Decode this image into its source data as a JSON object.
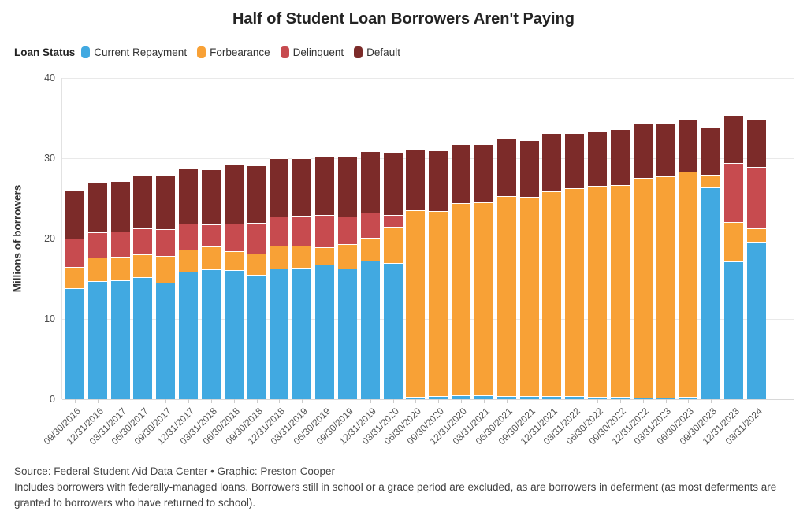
{
  "title": "Half of Student Loan Borrowers Aren't Paying",
  "legend": {
    "label": "Loan Status",
    "items": [
      {
        "label": "Current Repayment",
        "color": "#41a9e1"
      },
      {
        "label": "Forbearance",
        "color": "#f8a136"
      },
      {
        "label": "Delinquent",
        "color": "#c74b4f"
      },
      {
        "label": "Default",
        "color": "#7c2b29"
      }
    ]
  },
  "chart_data": {
    "type": "bar",
    "stacked": true,
    "title": "Half of Student Loan Borrowers Aren't Paying",
    "xlabel": "",
    "ylabel": "Millions of borrowers",
    "ylim": [
      0,
      40
    ],
    "yticks": [
      0,
      10,
      20,
      30,
      40
    ],
    "grid": true,
    "legend_position": "top-left",
    "categories": [
      "09/30/2016",
      "12/31/2016",
      "03/31/2017",
      "06/30/2017",
      "09/30/2017",
      "12/31/2017",
      "03/31/2018",
      "06/30/2018",
      "09/30/2018",
      "12/31/2018",
      "03/31/2019",
      "06/30/2019",
      "09/30/2019",
      "12/31/2019",
      "03/31/2020",
      "06/30/2020",
      "09/30/2020",
      "12/31/2020",
      "03/31/2021",
      "06/30/2021",
      "09/30/2021",
      "12/31/2021",
      "03/31/2022",
      "06/30/2022",
      "09/30/2022",
      "12/31/2022",
      "03/31/2023",
      "06/30/2023",
      "09/30/2023",
      "12/31/2023",
      "03/31/2024"
    ],
    "series": [
      {
        "name": "Current Repayment",
        "color": "#41a9e1",
        "values": [
          13.8,
          14.7,
          14.8,
          15.2,
          14.5,
          15.9,
          16.2,
          16.1,
          15.5,
          16.3,
          16.4,
          16.8,
          16.3,
          17.3,
          17.0,
          0.3,
          0.4,
          0.5,
          0.5,
          0.4,
          0.4,
          0.4,
          0.4,
          0.3,
          0.3,
          0.2,
          0.2,
          0.3,
          26.4,
          17.2,
          19.6
        ]
      },
      {
        "name": "Forbearance",
        "color": "#f8a136",
        "values": [
          2.7,
          2.9,
          2.9,
          2.8,
          3.3,
          2.7,
          2.8,
          2.3,
          2.6,
          2.8,
          2.7,
          2.1,
          3.0,
          2.8,
          4.5,
          23.2,
          23.0,
          23.9,
          24.0,
          24.9,
          24.8,
          25.5,
          25.9,
          26.3,
          26.4,
          27.4,
          27.5,
          28.0,
          1.5,
          4.9,
          1.7
        ]
      },
      {
        "name": "Delinquent",
        "color": "#c74b4f",
        "values": [
          3.5,
          3.2,
          3.2,
          3.3,
          3.4,
          3.3,
          2.8,
          3.5,
          3.9,
          3.6,
          3.7,
          4.0,
          3.4,
          3.1,
          1.4,
          0,
          0,
          0,
          0,
          0,
          0,
          0,
          0,
          0,
          0,
          0,
          0,
          0,
          0,
          7.3,
          7.6
        ]
      },
      {
        "name": "Default",
        "color": "#7c2b29",
        "values": [
          6.1,
          6.3,
          6.3,
          6.5,
          6.6,
          6.8,
          6.8,
          7.4,
          7.1,
          7.3,
          7.2,
          7.4,
          7.5,
          7.7,
          7.9,
          7.7,
          7.6,
          7.4,
          7.3,
          7.2,
          7.1,
          7.2,
          6.8,
          6.7,
          6.9,
          6.7,
          6.6,
          6.6,
          6.0,
          6.0,
          5.9
        ]
      }
    ]
  },
  "footer": {
    "source_prefix": "Source: ",
    "source_link": "Federal Student Aid Data Center",
    "source_separator": " • ",
    "source_suffix": "Graphic: Preston Cooper",
    "note": "Includes borrowers with federally-managed loans. Borrowers still in school or a grace period are excluded, as are borrowers in deferment (as most deferments are granted to borrowers who have returned to school)."
  }
}
